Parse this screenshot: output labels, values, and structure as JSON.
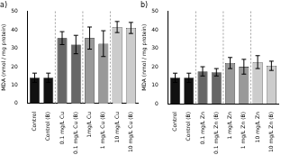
{
  "chart_data": [
    {
      "type": "bar",
      "title": "a)",
      "y_label": "MDA (nmol / mg protein)",
      "categories": [
        "Control",
        "Control (B)",
        "0.1 mg/L Cu",
        "0.1 mg/L Cu (B)",
        "1mg/L Cu",
        "1 mg/L Cu (B)",
        "10 mg/L Cu",
        "10 mg/L Cu (B)"
      ],
      "values": [
        14,
        14,
        35.5,
        32,
        35.5,
        32.5,
        41.5,
        41
      ],
      "errors": [
        2.5,
        2.5,
        3.5,
        5,
        6,
        7,
        3,
        3
      ],
      "colors": [
        "#111111",
        "#111111",
        "#666666",
        "#666666",
        "#999999",
        "#999999",
        "#cccccc",
        "#cccccc"
      ],
      "ylim": [
        0,
        50
      ],
      "yticks": [
        0,
        10,
        20,
        30,
        40,
        50
      ],
      "grid": false
    },
    {
      "type": "bar",
      "title": "b)",
      "y_label": "MDA (nmol / mg protein)",
      "categories": [
        "Control",
        "Control (B)",
        "0.1 mg/L Zn",
        "0.1 mg/L Zn (B)",
        "1 mg/L Zn",
        "1 mg/L Zn (B)",
        "10 mg/L Zn",
        "10 mg/L Zn (B)"
      ],
      "values": [
        14,
        14,
        17.5,
        17,
        22,
        20,
        22.5,
        20.5
      ],
      "errors": [
        2.5,
        2.5,
        2.5,
        2,
        3,
        4,
        3.5,
        2.5
      ],
      "colors": [
        "#111111",
        "#111111",
        "#666666",
        "#666666",
        "#999999",
        "#999999",
        "#cccccc",
        "#cccccc"
      ],
      "ylim": [
        0,
        50
      ],
      "yticks": [
        0,
        10,
        20,
        30,
        40,
        50
      ],
      "grid": false
    }
  ]
}
